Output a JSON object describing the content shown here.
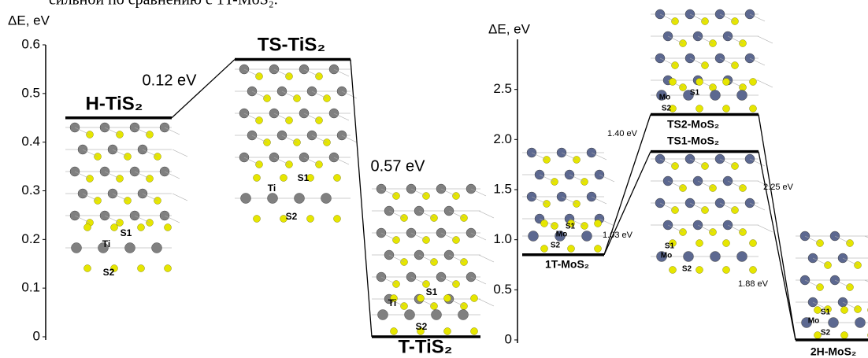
{
  "text_fragment": "сильной по сравнению с 1T-MoS₂.",
  "chart_data": [
    {
      "type": "energy-diagram",
      "y_label": "ΔE, eV",
      "categories": [
        "H-TiS₂",
        "TS-TiS₂",
        "T-TiS₂"
      ],
      "values": [
        0.45,
        0.57,
        0
      ],
      "ylim": [
        0,
        0.6
      ],
      "yticks": [
        0,
        0.1,
        0.2,
        0.3,
        0.4,
        0.5,
        0.6
      ],
      "annotations": [
        "0.12 eV",
        "0.57 eV"
      ],
      "atom_labels": [
        [
          "S1",
          "Ti",
          "S2"
        ],
        [
          "Ti",
          "S1",
          "S2"
        ],
        [
          "Ti",
          "S1",
          "S2"
        ]
      ],
      "color": "#000000"
    },
    {
      "type": "energy-diagram",
      "y_label": "ΔE, eV",
      "categories": [
        "1T-MoS₂",
        "TS2-MoS₂",
        "TS1-MoS₂",
        "2H-MoS₂"
      ],
      "values": [
        0.85,
        2.25,
        1.88,
        0
      ],
      "ylim": [
        0,
        3.0
      ],
      "yticks": [
        0,
        0.5,
        {
          "value": 1,
          "label": "1.0"
        },
        1.5,
        {
          "value": 2,
          "label": "2.0"
        },
        2.5
      ],
      "annotations": [
        "1.40 eV",
        "1.03 eV",
        "2.25 eV",
        "1.88 eV"
      ],
      "atom_labels": [
        [
          "S1",
          "Mo",
          "S2"
        ],
        [
          "Mo",
          "S1",
          "S2"
        ],
        [
          "S1",
          "Mo",
          "S2"
        ],
        [
          "S1",
          "Mo",
          "S2"
        ]
      ],
      "color": "#000000"
    }
  ]
}
